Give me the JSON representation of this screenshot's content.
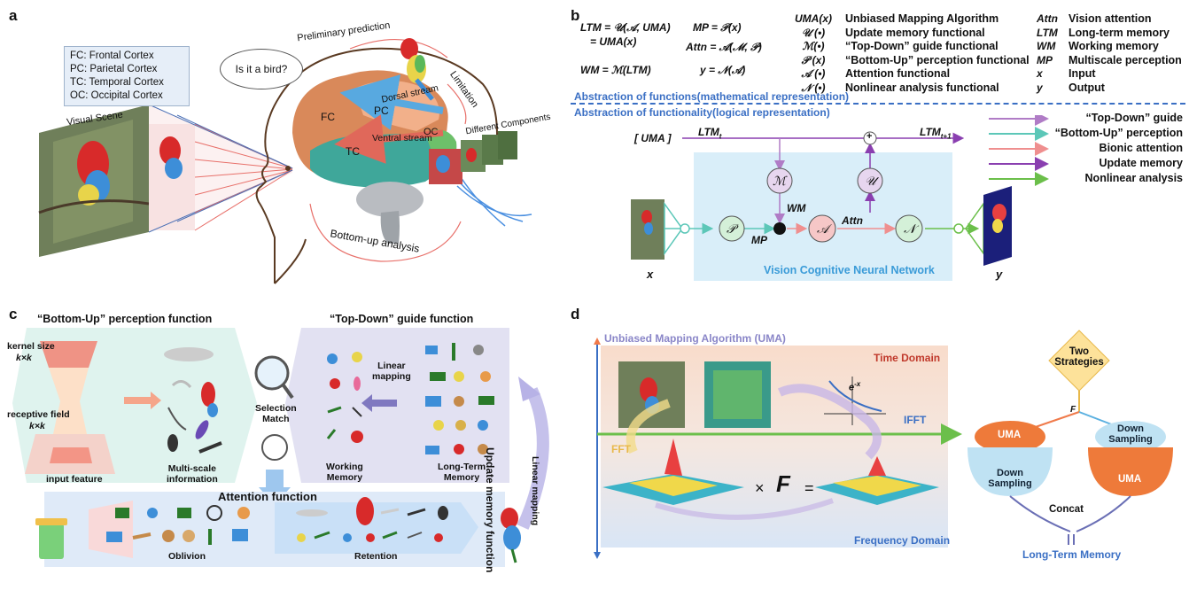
{
  "panels": {
    "a": "a",
    "b": "b",
    "c": "c",
    "d": "d"
  },
  "panel_a": {
    "cortex_legend": [
      "FC: Frontal Cortex",
      "PC: Parietal Cortex",
      "TC: Temporal Cortex",
      "OC: Occipital Cortex"
    ],
    "visual_scene": "Visual Scene",
    "bubble": "Is it a bird?",
    "preliminary": "Preliminary prediction",
    "limitation": "Limitation",
    "different_components": "Different Components",
    "dorsal": "Dorsal stream",
    "ventral": "Ventral stream",
    "fc": "FC",
    "pc": "PC",
    "tc": "TC",
    "oc": "OC",
    "bottom_up": "Bottom-up analysis"
  },
  "panel_b": {
    "formulas": {
      "ltm1": "LTM = 𝒰(𝒜, UMA)",
      "ltm2": "= UMA(x)",
      "wm": "WM = ℳ(LTM)",
      "mp": "MP = 𝒫(x)",
      "attn": "Attn = 𝒜(ℳ, 𝒫)",
      "y": "y = 𝒩(𝒜)"
    },
    "defs1": [
      {
        "sym": "UMA(x)",
        "text": "Unbiased Mapping Algorithm"
      },
      {
        "sym": "𝒰 (•)",
        "text": "Update memory functional"
      },
      {
        "sym": "ℳ(•)",
        "text": "“Top-Down” guide functional"
      },
      {
        "sym": "𝒫 (x)",
        "text": "“Bottom-Up” perception functional"
      },
      {
        "sym": "𝒜 (•)",
        "text": "Attention functional"
      },
      {
        "sym": "𝒩 (•)",
        "text": "Nonlinear analysis functional"
      }
    ],
    "defs2": [
      {
        "sym": "Attn",
        "text": "Vision attention"
      },
      {
        "sym": "LTM",
        "text": "Long-term memory"
      },
      {
        "sym": "WM",
        "text": "Working memory"
      },
      {
        "sym": "MP",
        "text": "Multiscale perception"
      },
      {
        "sym": "x",
        "text": "Input"
      },
      {
        "sym": "y",
        "text": "Output"
      }
    ],
    "abstraction_math": "Abstraction of functions(mathematical representation)",
    "abstraction_logic": "Abstraction of functionality(logical representation)",
    "legend": [
      {
        "label": "“Top-Down” guide",
        "color": "#b07cc6"
      },
      {
        "label": "“Bottom-Up” perception",
        "color": "#5cc7b8"
      },
      {
        "label": "Bionic attention",
        "color": "#ef8f8f"
      },
      {
        "label": "Update memory",
        "color": "#8a3fb0"
      },
      {
        "label": "Nonlinear analysis",
        "color": "#6bbf4a"
      }
    ],
    "uma_input": "[ UMA ]",
    "ltm_t": "LTM",
    "ltm_t_sub": "t",
    "ltm_t1": "LTM",
    "ltm_t1_sub": "t+1",
    "nodes": {
      "M": "ℳ",
      "U": "𝒰",
      "P": "𝒫",
      "A": "𝒜",
      "N": "𝒩",
      "plus": "+"
    },
    "wm_label": "WM",
    "mp_label": "MP",
    "attn_label": "Attn",
    "network": "Vision Cognitive Neural Network",
    "x": "x",
    "y": "y"
  },
  "panel_c": {
    "bottom_up_title": "“Bottom-Up” perception function",
    "top_down_title": "“Top-Down” guide function",
    "kernel_size": "kernel size",
    "kernel_kk": "k×k",
    "receptive": "receptive field",
    "receptive_kk": "k×k",
    "input_feature": "input feature",
    "multiscale": "Multi-scale\ninformation",
    "selection": "Selection\nMatch",
    "linear_mapping": "Linear\nmapping",
    "working_memory": "Working\nMemory",
    "long_term": "Long-Term\nMemory",
    "update_memory": "Update memory function",
    "linear_mapping2": "Linear mapping",
    "attention": "Attention function",
    "oblivion": "Oblivion",
    "retention": "Retention"
  },
  "panel_d": {
    "uma_title": "Unbiased Mapping Algorithm (UMA)",
    "time_domain": "Time Domain",
    "frequency_domain": "Frequency Domain",
    "fft": "FFT",
    "ifft": "IFFT",
    "exp": "e",
    "exp_sup": "-x",
    "times": "×",
    "F": "F",
    "equals": "=",
    "two_strategies": "Two\nStrategies",
    "f_small": "F",
    "uma_left": "UMA",
    "down_left": "Down\nSampling",
    "down_right": "Down\nSampling",
    "uma_right": "UMA",
    "concat": "Concat",
    "long_term_memory": "Long-Term Memory"
  }
}
